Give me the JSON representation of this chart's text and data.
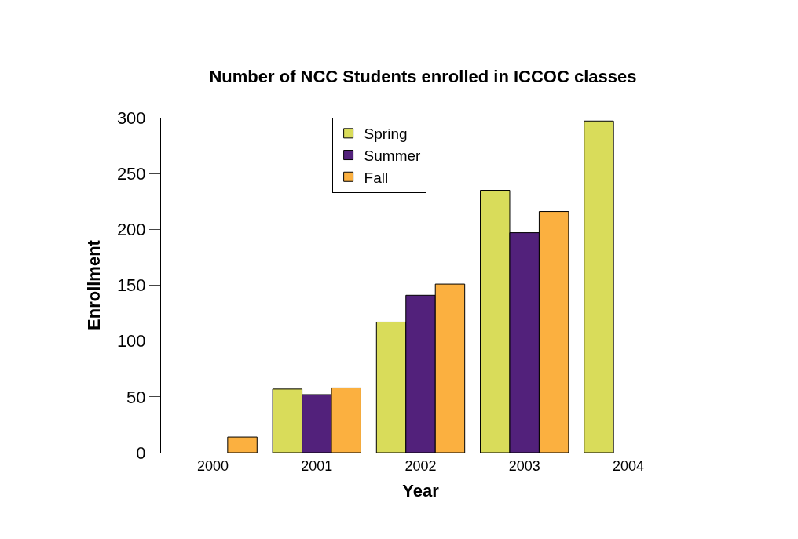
{
  "chart_data": {
    "type": "bar",
    "title": "Number of NCC Students enrolled in ICCOC classes",
    "xlabel": "Year",
    "ylabel": "Enrollment",
    "categories": [
      "2000",
      "2001",
      "2002",
      "2003",
      "2004"
    ],
    "series": [
      {
        "name": "Spring",
        "color": "#d9dc5a",
        "values": [
          null,
          57,
          117,
          235,
          297
        ]
      },
      {
        "name": "Summer",
        "color": "#52217b",
        "values": [
          null,
          52,
          141,
          197,
          null
        ]
      },
      {
        "name": "Fall",
        "color": "#fbb040",
        "values": [
          14,
          58,
          151,
          216,
          null
        ]
      }
    ],
    "ylim": [
      0,
      300
    ],
    "yticks": [
      0,
      50,
      100,
      150,
      200,
      250,
      300
    ],
    "legend": "top"
  }
}
